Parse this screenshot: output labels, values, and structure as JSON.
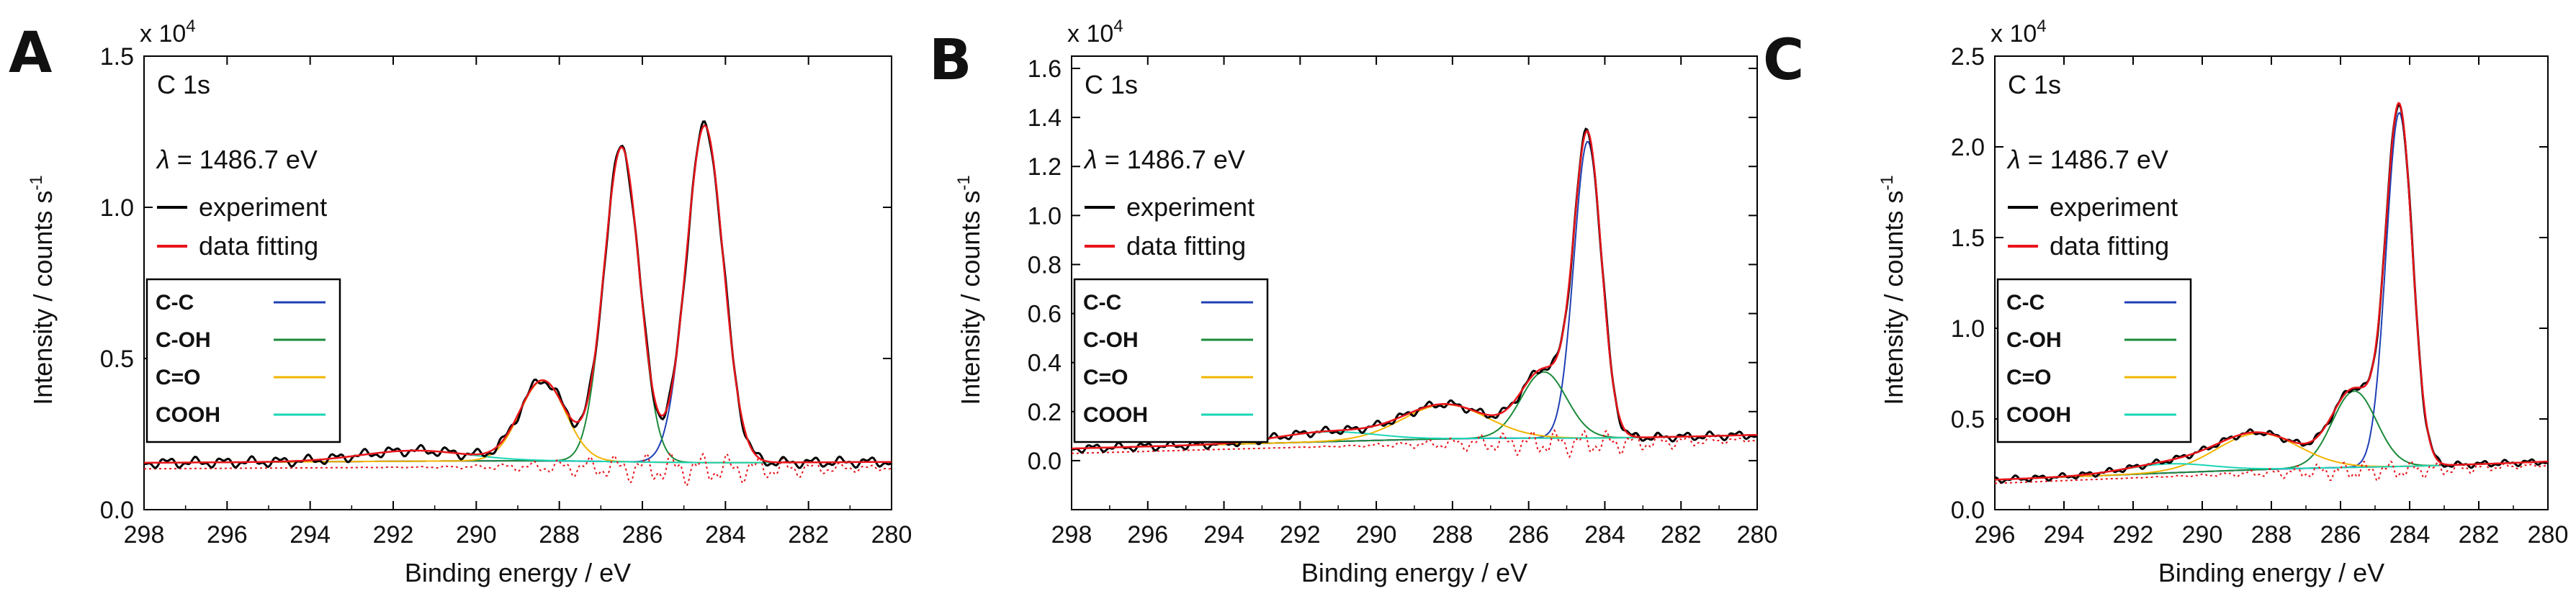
{
  "figure": {
    "description_none": ""
  },
  "chart_data": [
    {
      "type": "line",
      "panel_label": "A",
      "spectrum_label": "C 1s",
      "energy_annotation": "λ = 1486.7 eV",
      "multiplier": "x 10",
      "multiplier_exp": "4",
      "xlabel": "Binding energy / eV",
      "ylabel": "Intensity / counts s",
      "ylabel_sup": "-1",
      "xlim": [
        298,
        280
      ],
      "ylim": [
        0,
        1.5
      ],
      "x_ticks": [
        298,
        296,
        294,
        292,
        290,
        288,
        286,
        284,
        282,
        280
      ],
      "y_ticks": [
        0.0,
        0.5,
        1.0,
        1.5
      ],
      "y_tick_labels": [
        "0.0",
        "0.5",
        "1.0",
        "1.5"
      ],
      "legend_top": [
        {
          "label": "experiment",
          "color": "#000000"
        },
        {
          "label": "data fitting",
          "color": "#e8151b"
        }
      ],
      "legend_components": [
        {
          "label": "C-C",
          "color": "#1f3fb5",
          "text_color": "#123f7a"
        },
        {
          "label": "C-OH",
          "color": "#1a8a3a",
          "text_color": "#1f7a1f"
        },
        {
          "label": "C=O",
          "color": "#f2b400",
          "text_color": "#e8a400"
        },
        {
          "label": "COOH",
          "color": "#19d6b5",
          "text_color": "#12c7a6"
        }
      ],
      "background": {
        "a": 0.158,
        "b": -0.00083,
        "step": 0.012,
        "step_center": 286.5,
        "step_width": 1.0
      },
      "peaks": [
        {
          "name": "C-C",
          "center": 284.5,
          "height": 1.115,
          "fwhm": 1.05,
          "color": "#1f3fb5"
        },
        {
          "name": "C-OH",
          "center": 286.5,
          "height": 1.04,
          "fwhm": 1.0,
          "color": "#1a8a3a"
        },
        {
          "name": "C=O",
          "center": 288.4,
          "height": 0.265,
          "fwhm": 1.3,
          "color": "#f2b400"
        },
        {
          "name": "COOH",
          "center": 291.5,
          "height": 0.035,
          "fwhm": 3.0,
          "color": "#19d6b5"
        }
      ]
    },
    {
      "type": "line",
      "panel_label": "B",
      "spectrum_label": "C 1s",
      "energy_annotation": "λ = 1486.7 eV",
      "multiplier": "x 10",
      "multiplier_exp": "4",
      "xlabel": "Binding energy / eV",
      "ylabel": "Intensity / counts s",
      "ylabel_sup": "-1",
      "xlim": [
        298,
        280
      ],
      "ylim": [
        -0.2,
        1.65
      ],
      "x_ticks": [
        298,
        296,
        294,
        292,
        290,
        288,
        286,
        284,
        282,
        280
      ],
      "y_ticks": [
        0.0,
        0.2,
        0.4,
        0.6,
        0.8,
        1.0,
        1.2,
        1.4,
        1.6
      ],
      "y_tick_labels": [
        "0.0",
        "0.2",
        "0.4",
        "0.6",
        "0.8",
        "1.0",
        "1.2",
        "1.4",
        "1.6"
      ],
      "legend_top": [
        {
          "label": "experiment",
          "color": "#000000"
        },
        {
          "label": "data fitting",
          "color": "#e8151b"
        }
      ],
      "legend_components": [
        {
          "label": "C-C",
          "color": "#1f3fb5",
          "text_color": "#123f7a"
        },
        {
          "label": "C-OH",
          "color": "#1a8a3a",
          "text_color": "#1f7a1f"
        },
        {
          "label": "C=O",
          "color": "#f2b400",
          "text_color": "#e8a400"
        },
        {
          "label": "COOH",
          "color": "#19d6b5",
          "text_color": "#12c7a6"
        }
      ],
      "background": {
        "a": 0.105,
        "b": -0.0042,
        "step": 0.02,
        "step_center": 285.5,
        "step_width": 1.2
      },
      "peaks": [
        {
          "name": "C-C",
          "center": 284.45,
          "height": 1.21,
          "fwhm": 0.85,
          "color": "#1f3fb5"
        },
        {
          "name": "C-OH",
          "center": 285.6,
          "height": 0.27,
          "fwhm": 1.4,
          "color": "#1a8a3a"
        },
        {
          "name": "C=O",
          "center": 288.2,
          "height": 0.14,
          "fwhm": 2.6,
          "color": "#f2b400"
        },
        {
          "name": "COOH",
          "center": 291.3,
          "height": 0.04,
          "fwhm": 3.0,
          "color": "#19d6b5"
        }
      ]
    },
    {
      "type": "line",
      "panel_label": "C",
      "spectrum_label": "C 1s",
      "energy_annotation": "λ = 1486.7 eV",
      "multiplier": "x 10",
      "multiplier_exp": "4",
      "xlabel": "Binding energy / eV",
      "ylabel": "Intensity / counts s",
      "ylabel_sup": "-1",
      "xlim": [
        296,
        280
      ],
      "ylim": [
        0,
        2.5
      ],
      "x_ticks": [
        296,
        294,
        292,
        290,
        288,
        286,
        284,
        282,
        280
      ],
      "y_ticks": [
        0.0,
        0.5,
        1.0,
        1.5,
        2.0,
        2.5
      ],
      "y_tick_labels": [
        "0.0",
        "0.5",
        "1.0",
        "1.5",
        "2.0",
        "2.5"
      ],
      "legend_top": [
        {
          "label": "experiment",
          "color": "#000000"
        },
        {
          "label": "data fitting",
          "color": "#e8151b"
        }
      ],
      "legend_components": [
        {
          "label": "C-C",
          "color": "#1f3fb5",
          "text_color": "#123f7a"
        },
        {
          "label": "C-OH",
          "color": "#1a8a3a",
          "text_color": "#1f7a1f"
        },
        {
          "label": "C=O",
          "color": "#f2b400",
          "text_color": "#e8a400"
        },
        {
          "label": "COOH",
          "color": "#19d6b5",
          "text_color": "#12c7a6"
        }
      ],
      "background": {
        "a": 0.265,
        "b": -0.0075,
        "step": 0.02,
        "step_center": 285.5,
        "step_width": 1.2
      },
      "peaks": [
        {
          "name": "C-C",
          "center": 284.3,
          "height": 1.95,
          "fwhm": 0.9,
          "color": "#1f3fb5"
        },
        {
          "name": "C-OH",
          "center": 285.6,
          "height": 0.42,
          "fwhm": 1.5,
          "color": "#1a8a3a"
        },
        {
          "name": "C=O",
          "center": 288.4,
          "height": 0.2,
          "fwhm": 2.8,
          "color": "#f2b400"
        },
        {
          "name": "COOH",
          "center": 291.0,
          "height": 0.05,
          "fwhm": 3.0,
          "color": "#19d6b5"
        }
      ]
    }
  ]
}
